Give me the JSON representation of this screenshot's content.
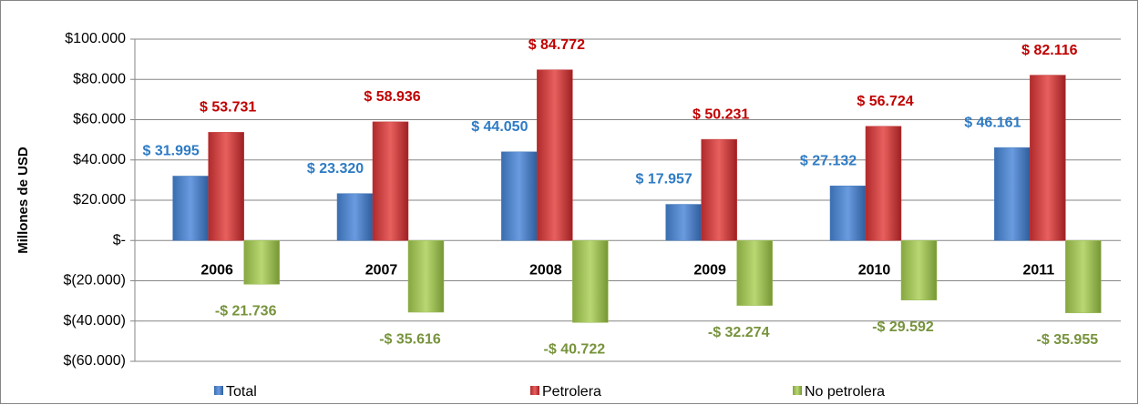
{
  "chart_data": {
    "type": "bar",
    "y_label": "Millones de USD",
    "categories": [
      "2006",
      "2007",
      "2008",
      "2009",
      "2010",
      "2011"
    ],
    "series": [
      {
        "name": "Total",
        "color": "#4a7ebb",
        "label_color": "#2e7bc4",
        "values": [
          31995,
          23320,
          44050,
          17957,
          27132,
          46161
        ],
        "value_labels": [
          "$ 31.995",
          "$ 23.320",
          "$ 44.050",
          "$ 17.957",
          "$ 27.132",
          "$ 46.161"
        ]
      },
      {
        "name": "Petrolera",
        "color": "#c0393b",
        "label_color": "#c00000",
        "values": [
          53731,
          58936,
          84772,
          50231,
          56724,
          82116
        ],
        "value_labels": [
          "$ 53.731",
          "$ 58.936",
          "$ 84.772",
          "$ 50.231",
          "$ 56.724",
          "$ 82.116"
        ]
      },
      {
        "name": "No petrolera",
        "color": "#9bbb59",
        "label_color": "#77933c",
        "values": [
          -21736,
          -35616,
          -40722,
          -32274,
          -29592,
          -35955
        ],
        "value_labels": [
          "-$ 21.736",
          "-$ 35.616",
          "-$ 40.722",
          "-$ 32.274",
          "-$ 29.592",
          "-$ 35.955"
        ]
      }
    ],
    "ylim": [
      -60000,
      100000
    ],
    "yticks": [
      {
        "value": 100000,
        "label": "$100.000"
      },
      {
        "value": 80000,
        "label": "$80.000"
      },
      {
        "value": 60000,
        "label": "$60.000"
      },
      {
        "value": 40000,
        "label": "$40.000"
      },
      {
        "value": 20000,
        "label": "$20.000"
      },
      {
        "value": 0,
        "label": "$-"
      },
      {
        "value": -20000,
        "label": "$(20.000)"
      },
      {
        "value": -40000,
        "label": "$(40.000)"
      },
      {
        "value": -60000,
        "label": "$(60.000)"
      }
    ],
    "grid": true,
    "legend": "bottom"
  }
}
